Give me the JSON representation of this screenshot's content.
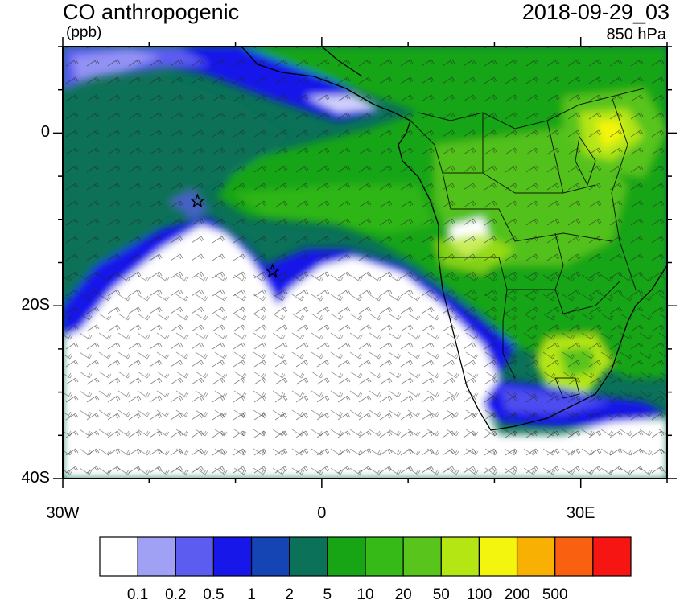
{
  "header": {
    "title": "CO anthropogenic",
    "units": "(ppb)",
    "datetime": "2018-09-29_03",
    "level": "850 hPa"
  },
  "map": {
    "region": "Southern Africa and South Atlantic",
    "lon_range": [
      -30,
      40
    ],
    "lat_range": [
      -40,
      10
    ],
    "x_ticks": [
      {
        "lon": -30,
        "label": "30W"
      },
      {
        "lon": 0,
        "label": "0"
      },
      {
        "lon": 30,
        "label": "30E"
      }
    ],
    "y_ticks": [
      {
        "lat": 0,
        "label": "0"
      },
      {
        "lat": -20,
        "label": "20S"
      },
      {
        "lat": -40,
        "label": "40S"
      }
    ],
    "markers": [
      {
        "name": "star-marker",
        "lon": -14.4,
        "lat": -7.9
      },
      {
        "name": "star-marker",
        "lon": -5.7,
        "lat": -16.0
      }
    ]
  },
  "colorbar": {
    "colors": [
      "#ffffff",
      "#a0a0f5",
      "#5c5cf0",
      "#1717ea",
      "#1544b4",
      "#0b7158",
      "#17a515",
      "#35ba17",
      "#59c41c",
      "#b4e614",
      "#f4f50e",
      "#f8b003",
      "#f96010",
      "#f61512"
    ],
    "labels": [
      "0.1",
      "0.2",
      "0.5",
      "1",
      "2",
      "5",
      "10",
      "20",
      "50",
      "100",
      "200",
      "500"
    ]
  }
}
